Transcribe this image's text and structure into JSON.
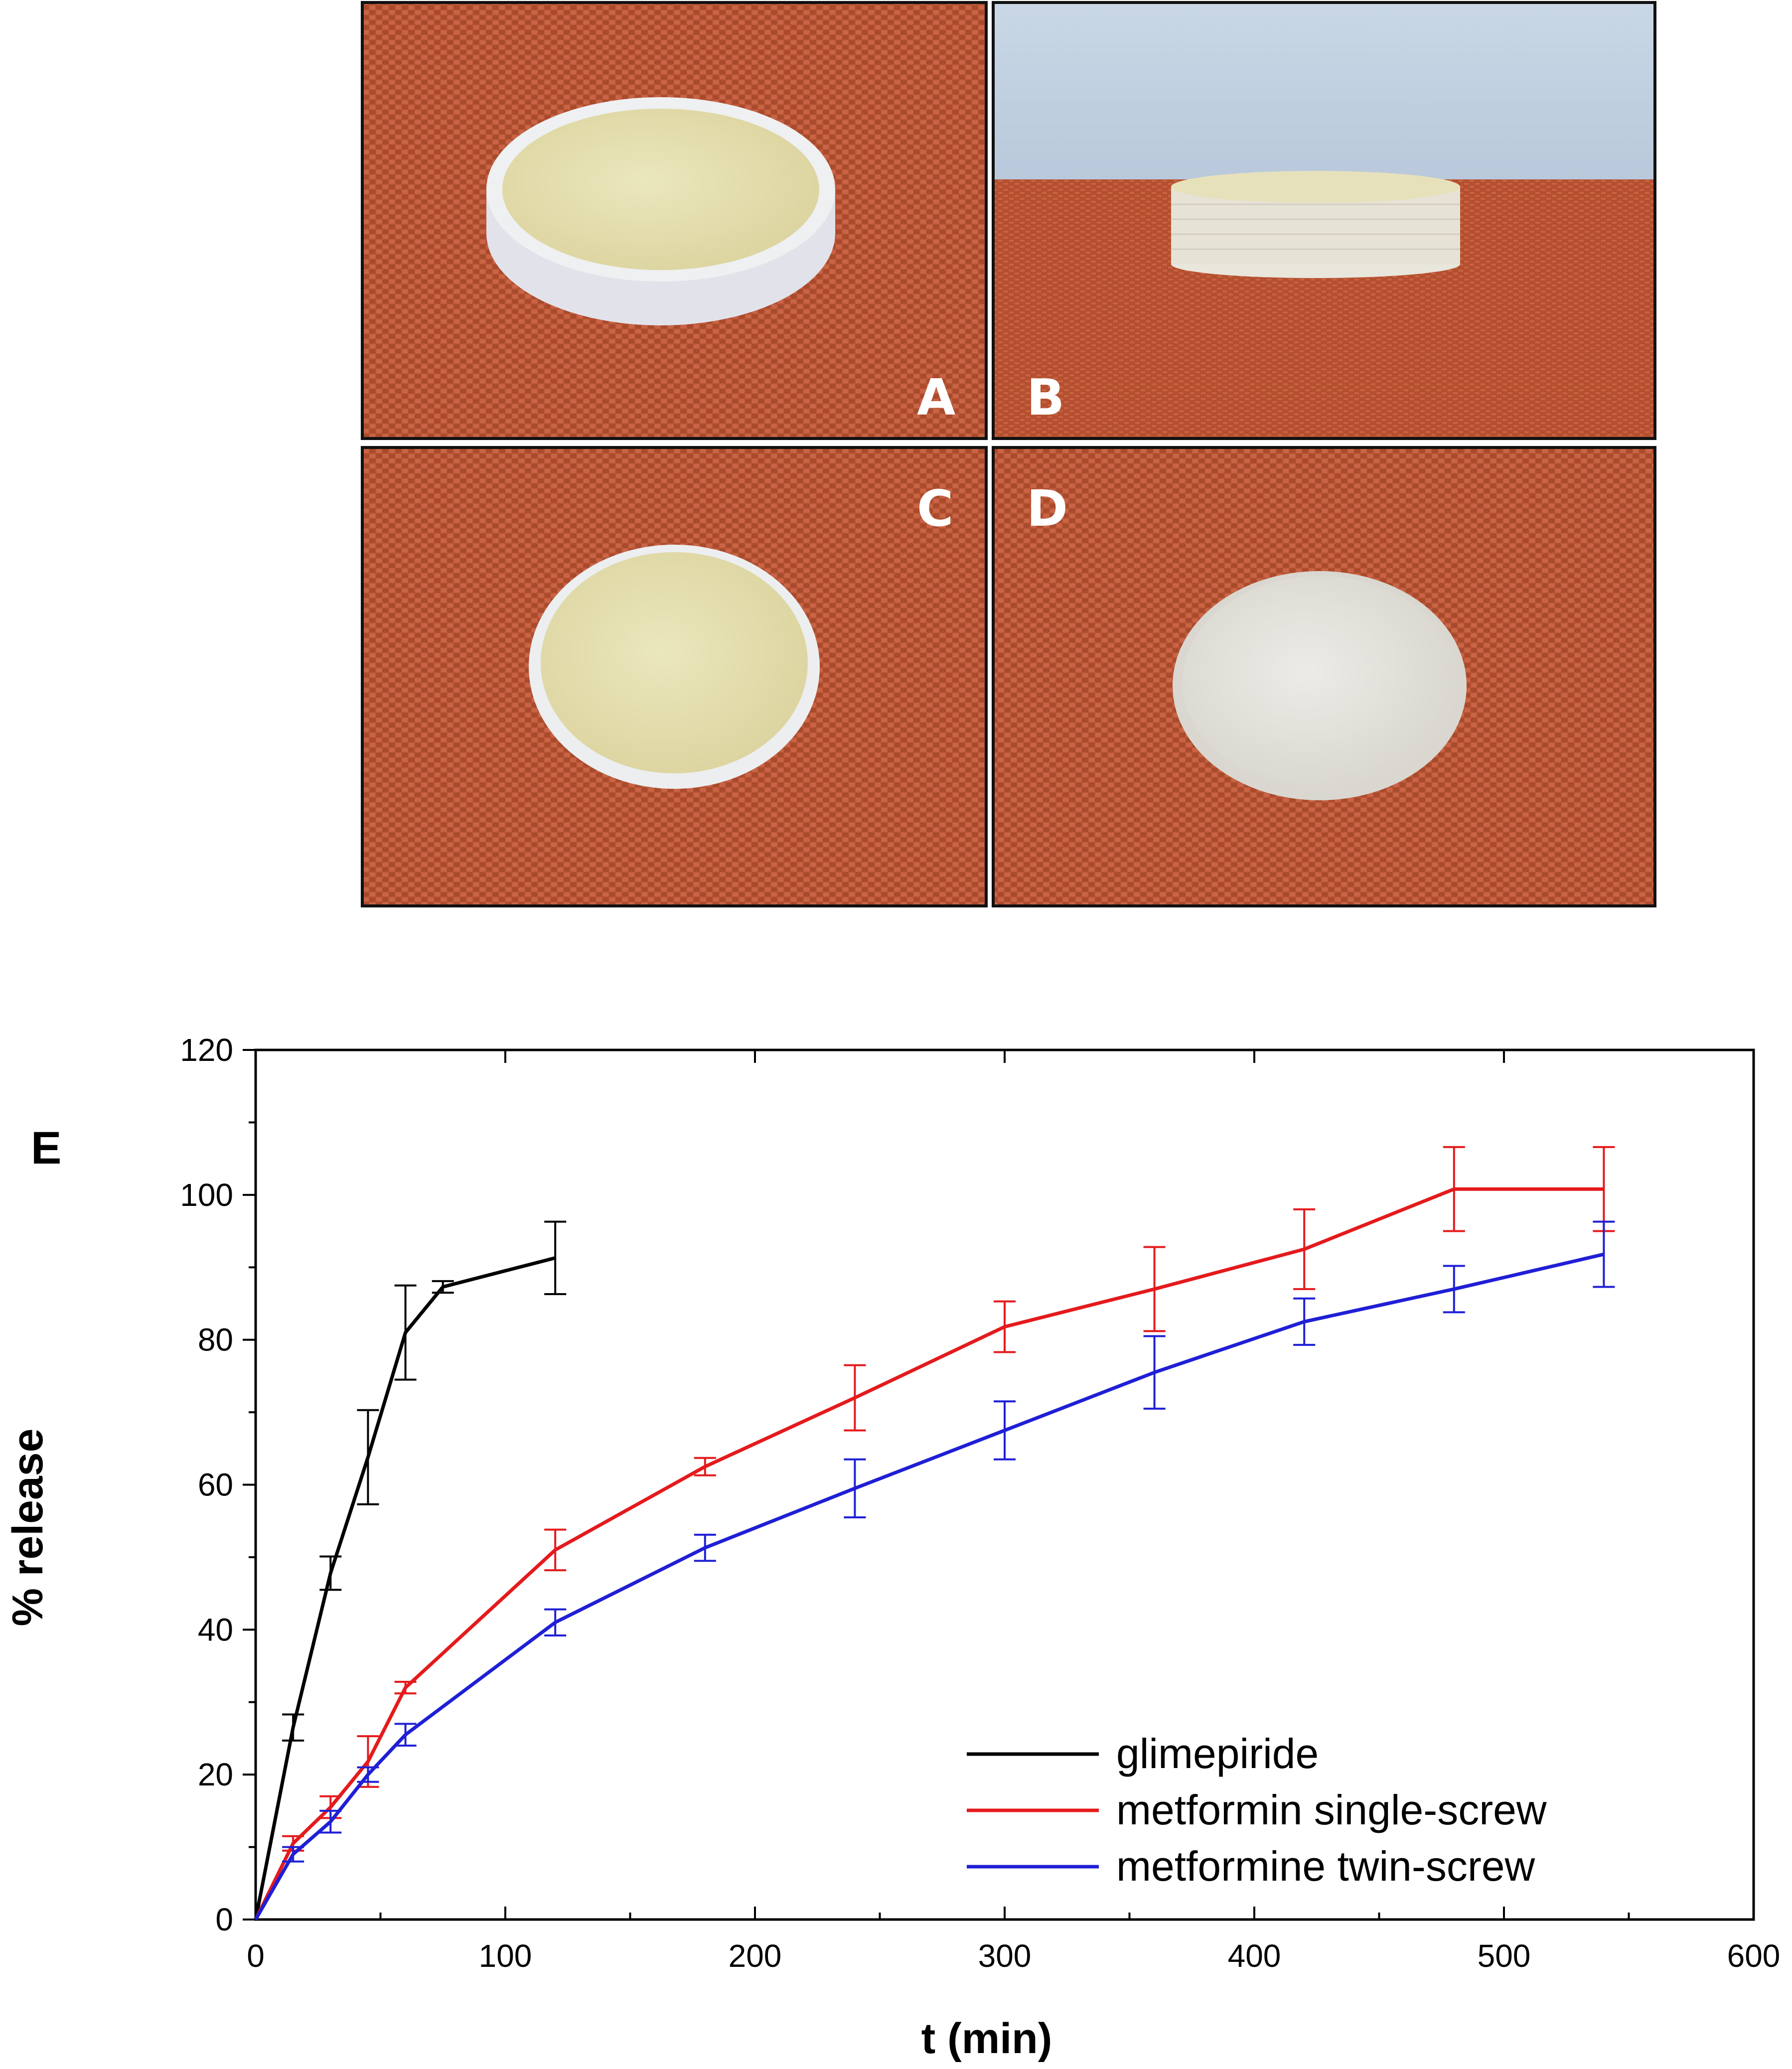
{
  "panels": [
    {
      "letter": "A",
      "view": "top-angled view of tablet",
      "tablet_color": "yellow-center"
    },
    {
      "letter": "B",
      "view": "side view of tablet",
      "tablet_color": "yellow-center"
    },
    {
      "letter": "C",
      "view": "top view of tablet",
      "tablet_color": "yellow-center"
    },
    {
      "letter": "D",
      "view": "top view of tablet",
      "tablet_color": "white"
    }
  ],
  "colors": {
    "fabric": "#b85434",
    "fabric_dark": "#8e3a22",
    "sky": "#c3d2e2",
    "tablet_yellow": "#e6e0b0",
    "tablet_white": "#e4e2dc",
    "glimepiride": "#000000",
    "metformin_single": "#e41a1c",
    "metformin_twin": "#1f1fd6"
  },
  "chart_data": {
    "type": "line",
    "figure_letter": "E",
    "title": "",
    "xlabel": "t (min)",
    "ylabel": "% release",
    "xlim": [
      0,
      600
    ],
    "ylim": [
      0,
      120
    ],
    "xticks": [
      0,
      100,
      200,
      300,
      400,
      500,
      600
    ],
    "yticks": [
      0,
      20,
      40,
      60,
      80,
      100,
      120
    ],
    "legend_position": "bottom-right",
    "grid": false,
    "series": [
      {
        "name": "glimepiride",
        "color": "#000000",
        "x": [
          0,
          15,
          30,
          45,
          60,
          75,
          120
        ],
        "y": [
          0,
          26.5,
          47.8,
          63.8,
          81.0,
          87.3,
          91.3
        ],
        "err": [
          0,
          1.8,
          2.3,
          6.5,
          6.5,
          0.8,
          5.0
        ]
      },
      {
        "name": "metformin single-screw",
        "color": "#e41a1c",
        "x": [
          0,
          15,
          30,
          45,
          60,
          120,
          180,
          240,
          300,
          360,
          420,
          480,
          540
        ],
        "y": [
          0,
          10.5,
          15.5,
          21.8,
          32.0,
          51.0,
          62.5,
          72.0,
          81.8,
          87.0,
          92.5,
          100.8,
          100.8
        ],
        "err": [
          0,
          1.0,
          1.5,
          3.5,
          0.8,
          2.8,
          1.2,
          4.5,
          3.5,
          5.8,
          5.5,
          5.8,
          5.8
        ]
      },
      {
        "name": "metformine twin-screw",
        "color": "#1f1fd6",
        "x": [
          0,
          15,
          30,
          45,
          60,
          120,
          180,
          240,
          300,
          360,
          420,
          480,
          540
        ],
        "y": [
          0,
          9.0,
          13.5,
          20.0,
          25.5,
          41.0,
          51.3,
          59.5,
          67.5,
          75.5,
          82.5,
          87.0,
          91.8
        ],
        "err": [
          0,
          1.0,
          1.5,
          1.0,
          1.5,
          1.8,
          1.8,
          4.0,
          4.0,
          5.0,
          3.2,
          3.2,
          4.5
        ]
      }
    ]
  }
}
